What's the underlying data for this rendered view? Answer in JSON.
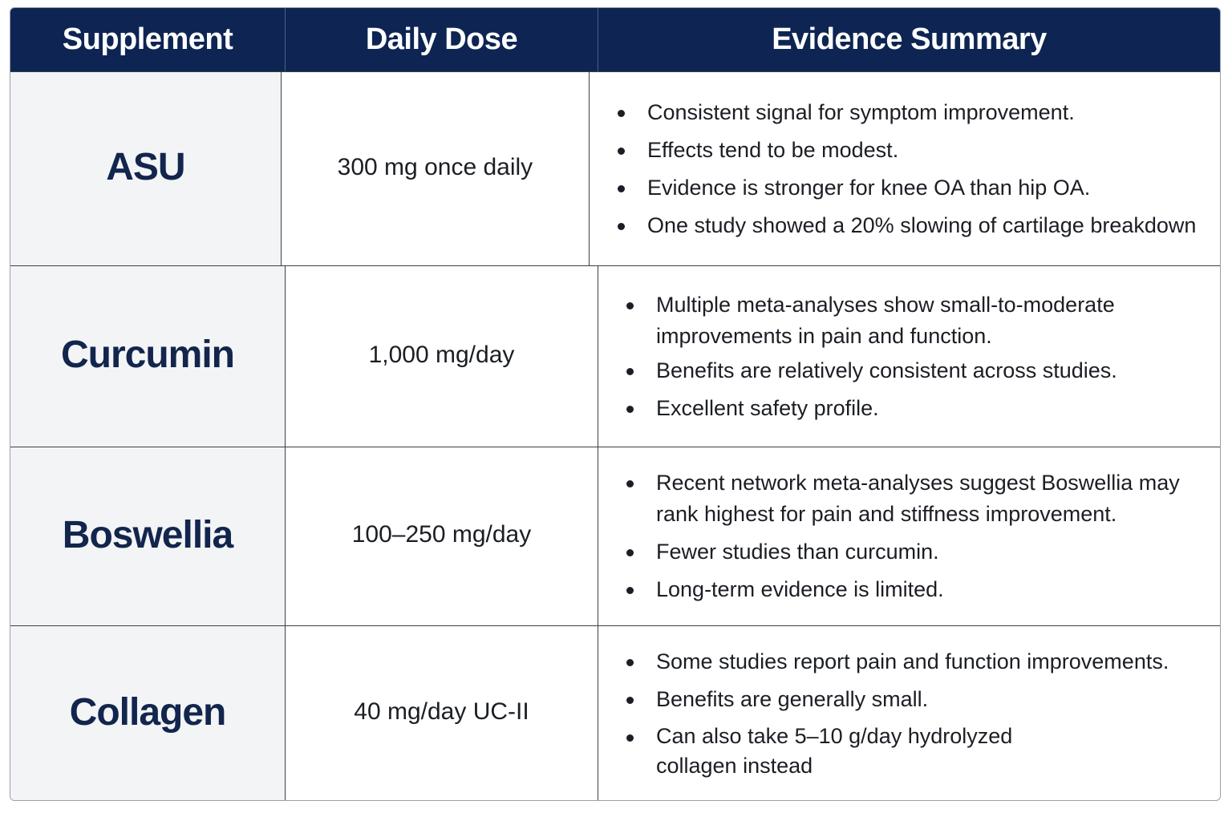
{
  "header": {
    "col_supplement": "Supplement",
    "col_dose": "Daily Dose",
    "col_evidence": "Evidence Summary"
  },
  "rows": [
    {
      "name": "ASU",
      "dose": "300 mg once daily",
      "evidence": [
        "Consistent signal for symptom improvement.",
        "Effects tend to be modest.",
        "Evidence is stronger for knee OA than hip OA.",
        "One study showed a 20% slowing of cartilage breakdown"
      ]
    },
    {
      "name": "Curcumin",
      "dose": "1,000 mg/day",
      "evidence": [
        "Multiple meta-analyses show small-to-moderate improvements in pain and function.",
        "Benefits are relatively consistent across studies.",
        "Excellent safety profile."
      ]
    },
    {
      "name": "Boswellia",
      "dose": "100–250 mg/day",
      "evidence": [
        "Recent network meta-analyses suggest Boswellia may rank highest for pain and stiffness improvement.",
        "Fewer studies than curcumin.",
        "Long-term evidence is limited."
      ]
    },
    {
      "name": "Collagen",
      "dose": "40 mg/day UC-II",
      "evidence": [
        "Some studies report pain and function improvements.",
        "Benefits are generally small.",
        "Can also take 5–10 g/day hydrolyzed collagen instead"
      ]
    }
  ]
}
